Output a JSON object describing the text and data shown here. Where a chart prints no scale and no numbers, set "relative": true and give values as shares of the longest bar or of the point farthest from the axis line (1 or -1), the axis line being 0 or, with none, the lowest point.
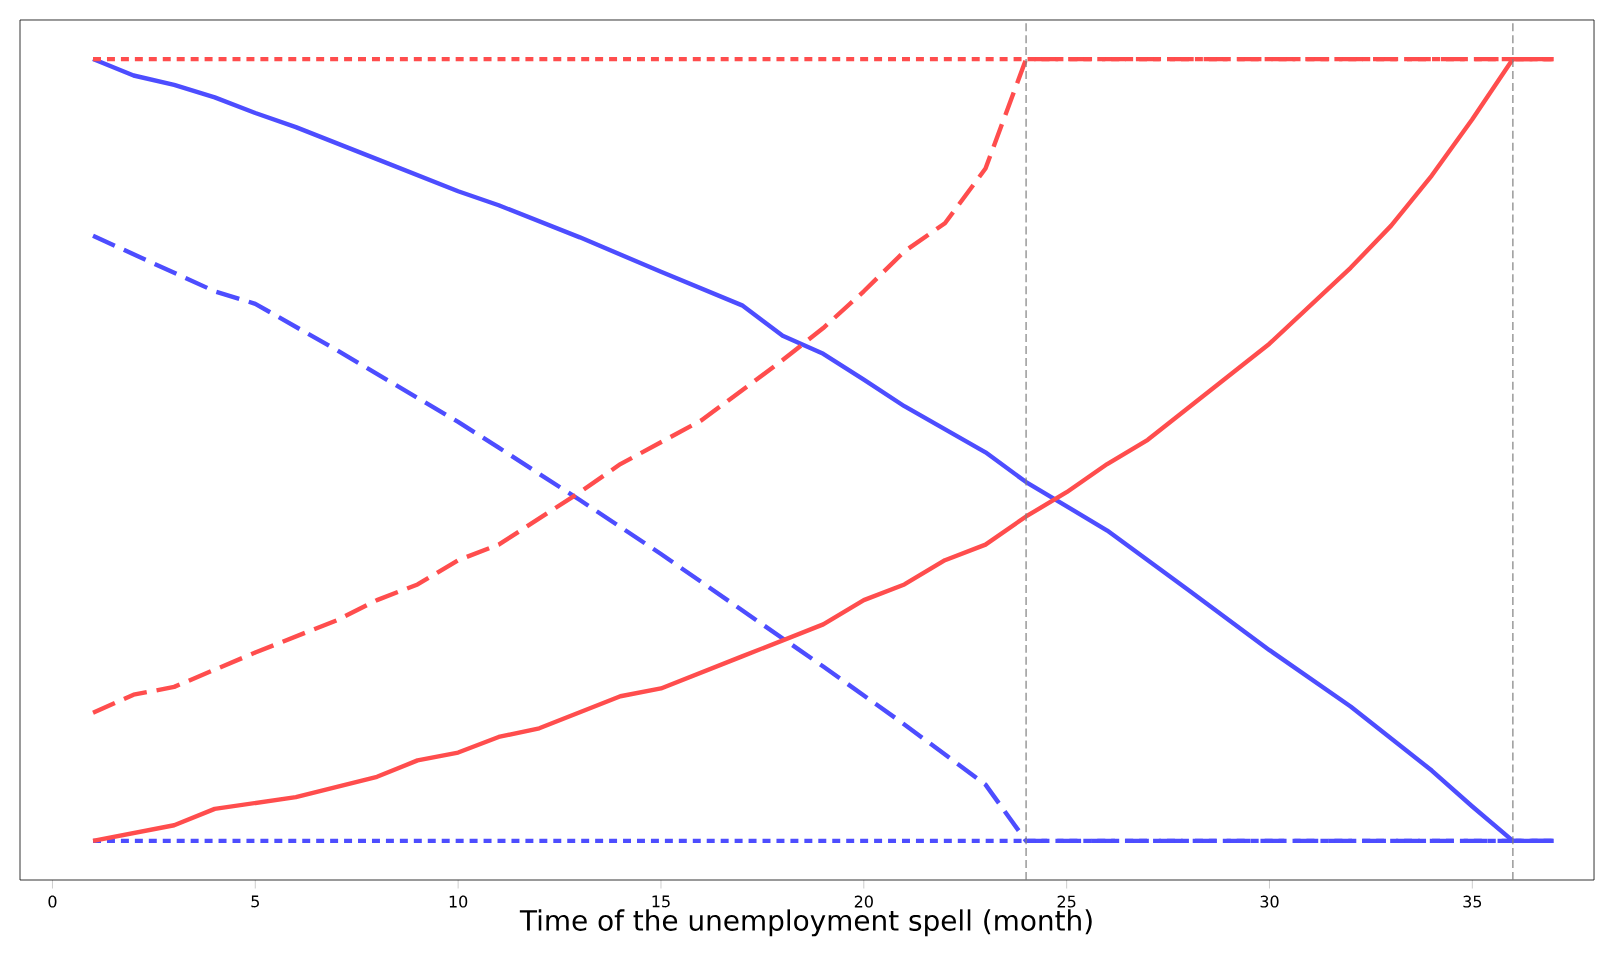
{
  "chart_data": {
    "type": "line",
    "relative": true,
    "xlabel": "Time of the unemployment spell (month)",
    "xlim": [
      -0.8,
      38
    ],
    "xticks": [
      0,
      5,
      10,
      15,
      20,
      25,
      30,
      35
    ],
    "marker": "none",
    "series": [
      {
        "color": "#4d4dff",
        "line_style": "solid",
        "x": [
          1,
          2,
          3,
          4,
          5,
          6,
          8,
          10,
          11,
          13,
          15,
          17,
          18,
          19,
          20,
          21,
          23,
          24,
          26,
          28,
          30,
          32,
          34,
          35,
          36,
          37
        ],
        "values": [
          1,
          0.979,
          0.967,
          0.951,
          0.931,
          0.913,
          0.872,
          0.831,
          0.813,
          0.772,
          0.728,
          0.685,
          0.646,
          0.623,
          0.59,
          0.556,
          0.497,
          0.459,
          0.397,
          0.321,
          0.244,
          0.172,
          0.09,
          0.044,
          0,
          0
        ]
      },
      {
        "color": "#4d4dff",
        "line_style": "dashed",
        "x": [
          1,
          4,
          5,
          7,
          10,
          11,
          13,
          15,
          17,
          19,
          21,
          23,
          24,
          37
        ],
        "values": [
          0.774,
          0.703,
          0.687,
          0.628,
          0.536,
          0.503,
          0.436,
          0.367,
          0.295,
          0.223,
          0.149,
          0.072,
          0,
          0
        ]
      },
      {
        "color": "#4d4dff",
        "line_style": "dotted",
        "x": [
          1,
          37
        ],
        "values": [
          0,
          0
        ]
      },
      {
        "color": "#ff4d4d",
        "line_style": "solid",
        "x": [
          1,
          3,
          4,
          6,
          8,
          9,
          10,
          11,
          12,
          14,
          15,
          17,
          19,
          20,
          21,
          22,
          23,
          24,
          25,
          26,
          27,
          28,
          30,
          32,
          33,
          34,
          35,
          36,
          37
        ],
        "values": [
          0,
          0.02,
          0.041,
          0.056,
          0.082,
          0.103,
          0.113,
          0.133,
          0.144,
          0.185,
          0.195,
          0.236,
          0.277,
          0.308,
          0.328,
          0.359,
          0.379,
          0.415,
          0.446,
          0.482,
          0.513,
          0.554,
          0.636,
          0.733,
          0.787,
          0.851,
          0.923,
          1,
          1
        ]
      },
      {
        "color": "#ff4d4d",
        "line_style": "dashed",
        "x": [
          1,
          2,
          3,
          5,
          7,
          8,
          9,
          10,
          11,
          13,
          14,
          16,
          18,
          19,
          20,
          21,
          22,
          23,
          24,
          37
        ],
        "values": [
          0.164,
          0.187,
          0.197,
          0.241,
          0.282,
          0.308,
          0.328,
          0.359,
          0.379,
          0.446,
          0.482,
          0.538,
          0.615,
          0.656,
          0.703,
          0.754,
          0.79,
          0.86,
          1,
          1
        ]
      },
      {
        "color": "#ff4d4d",
        "line_style": "dotted",
        "x": [
          1,
          37
        ],
        "values": [
          1,
          1
        ]
      }
    ],
    "ref_lines": [
      {
        "axis": "x",
        "value": 24,
        "color": "#808080",
        "line_style": "dashed"
      },
      {
        "axis": "x",
        "value": 36,
        "color": "#808080",
        "line_style": "dashed"
      }
    ]
  }
}
